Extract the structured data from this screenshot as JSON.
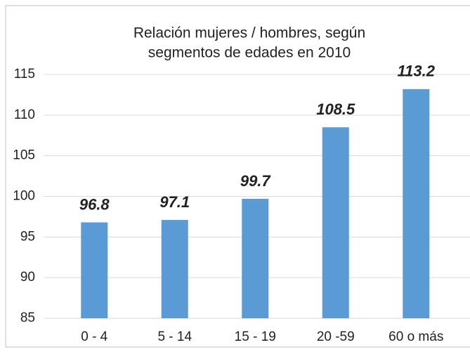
{
  "chart_data": {
    "type": "bar",
    "title_lines": [
      "Relación mujeres / hombres, según",
      "segmentos de edades en 2010"
    ],
    "categories": [
      "0 - 4",
      "5 - 14",
      "15 - 19",
      "20 -59",
      "60 o más"
    ],
    "values": [
      96.8,
      97.1,
      99.7,
      108.5,
      113.2
    ],
    "color": "#5b9bd5",
    "ylim": [
      85,
      115
    ],
    "yticks": [
      85,
      90,
      95,
      100,
      105,
      110,
      115
    ],
    "grid": true
  }
}
